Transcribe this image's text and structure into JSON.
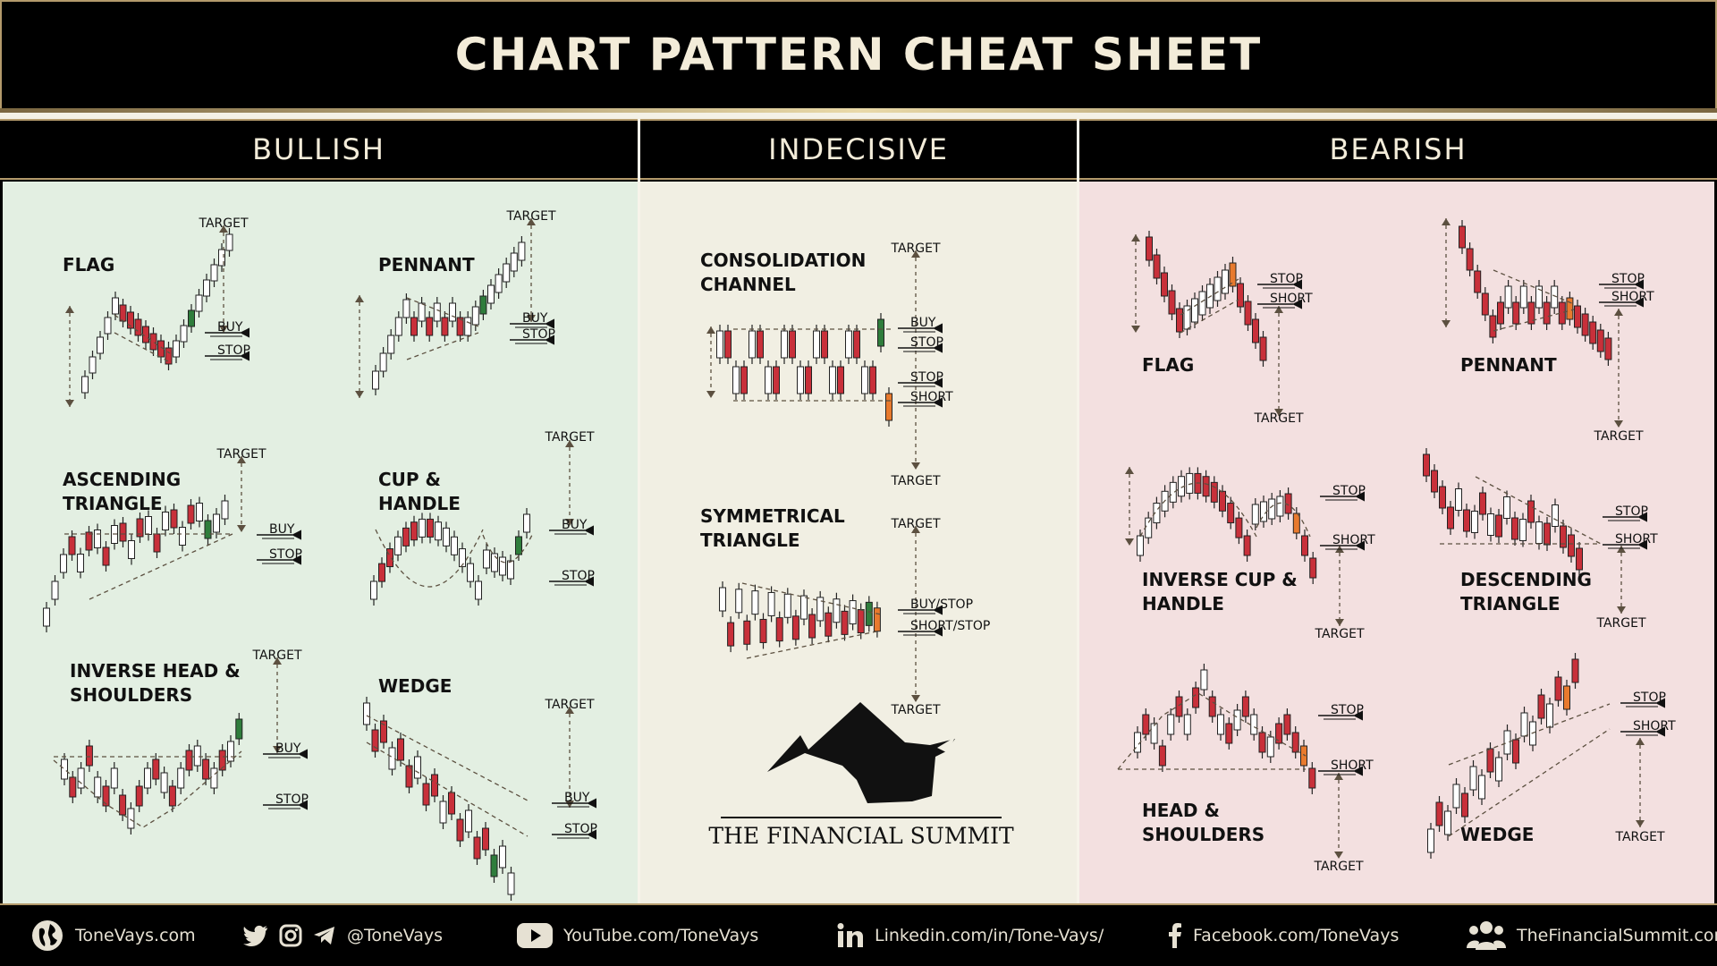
{
  "title": "CHART PATTERN CHEAT SHEET",
  "columns": {
    "bullish": "BULLISH",
    "indecisive": "INDECISIVE",
    "bearish": "BEARISH"
  },
  "labels": {
    "target": "TARGET",
    "buy": "BUY",
    "stop": "STOP",
    "short": "SHORT",
    "buy_stop": "BUY/STOP",
    "short_stop": "SHORT/STOP"
  },
  "patterns": {
    "bullish": [
      {
        "line1": "FLAG",
        "line2": ""
      },
      {
        "line1": "PENNANT",
        "line2": ""
      },
      {
        "line1": "ASCENDING",
        "line2": "TRIANGLE"
      },
      {
        "line1": "CUP &",
        "line2": "HANDLE"
      },
      {
        "line1": "INVERSE HEAD &",
        "line2": "SHOULDERS"
      },
      {
        "line1": "WEDGE",
        "line2": ""
      }
    ],
    "indecisive": [
      {
        "line1": "CONSOLIDATION",
        "line2": "CHANNEL"
      },
      {
        "line1": "SYMMETRICAL",
        "line2": "TRIANGLE"
      }
    ],
    "bearish": [
      {
        "line1": "FLAG",
        "line2": ""
      },
      {
        "line1": "PENNANT",
        "line2": ""
      },
      {
        "line1": "INVERSE CUP &",
        "line2": "HANDLE"
      },
      {
        "line1": "DESCENDING",
        "line2": "TRIANGLE"
      },
      {
        "line1": "HEAD &",
        "line2": "SHOULDERS"
      },
      {
        "line1": "WEDGE",
        "line2": ""
      }
    ]
  },
  "logo_text": "THE FINANCIAL SUMMIT",
  "colors": {
    "bull": "#2f7d3c",
    "bear": "#c8303a",
    "neutral": "#ffffff",
    "signal": "#e87a2e",
    "gold": "#b39a6b"
  },
  "footer": {
    "website": "ToneVays.com",
    "social": "@ToneVays",
    "youtube": "YouTube.com/ToneVays",
    "linkedin": "Linkedin.com/in/Tone-Vays/",
    "facebook": "Facebook.com/ToneVays",
    "summit": "TheFinancialSummit.com"
  }
}
